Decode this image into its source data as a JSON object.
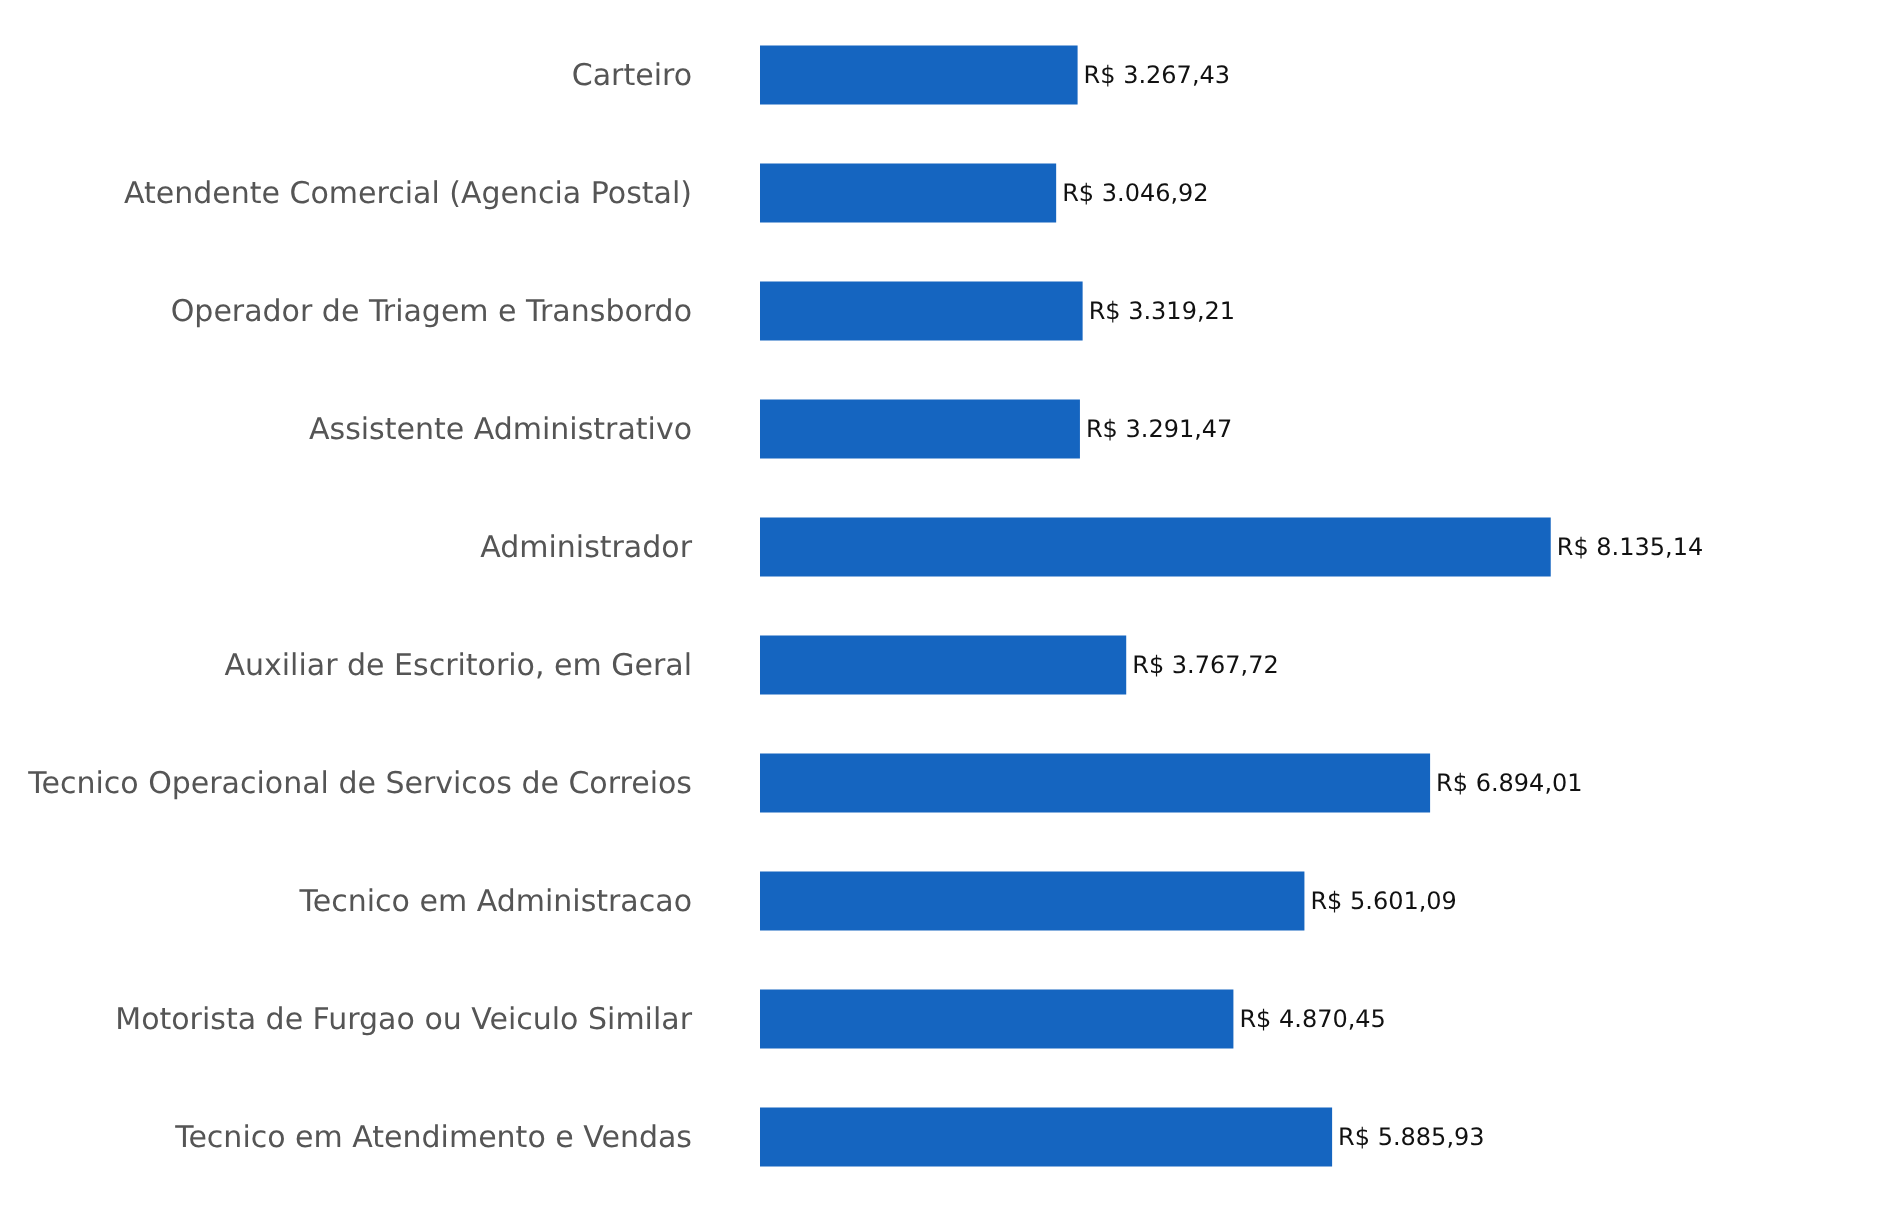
{
  "chart_data": {
    "type": "bar",
    "orientation": "horizontal",
    "categories": [
      "Carteiro",
      "Atendente Comercial (Agencia Postal)",
      "Operador de Triagem e Transbordo",
      "Assistente Administrativo",
      "Administrador",
      "Auxiliar de Escritorio, em Geral",
      "Tecnico Operacional de Servicos de Correios",
      "Tecnico em Administracao",
      "Motorista de Furgao ou Veiculo Similar",
      "Tecnico em Atendimento e Vendas"
    ],
    "values": [
      3267.43,
      3046.92,
      3319.21,
      3291.47,
      8135.14,
      3767.72,
      6894.01,
      5601.09,
      4870.45,
      5885.93
    ],
    "value_labels": [
      "R$ 3.267,43",
      "R$ 3.046,92",
      "R$ 3.319,21",
      "R$ 3.291,47",
      "R$ 8.135,14",
      "R$ 3.767,72",
      "R$ 6.894,01",
      "R$ 5.601,09",
      "R$ 4.870,45",
      "R$ 5.885,93"
    ],
    "color": "#1565c0"
  }
}
